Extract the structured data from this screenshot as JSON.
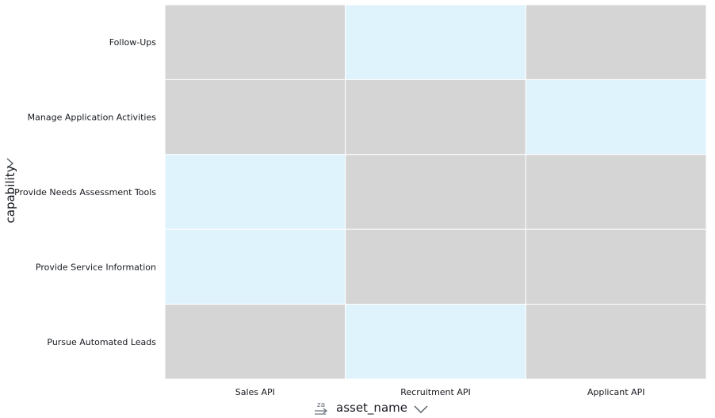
{
  "chart_data": {
    "type": "heatmap",
    "xlabel": "asset_name",
    "ylabel": "capability",
    "x_categories": [
      "Sales API",
      "Recruitment API",
      "Applicant API"
    ],
    "y_categories": [
      "Follow-Ups",
      "Manage Application Activities",
      "Provide Needs Assessment Tools",
      "Provide Service Information",
      "Pursue Automated Leads"
    ],
    "values": [
      [
        0,
        1,
        0
      ],
      [
        0,
        0,
        1
      ],
      [
        1,
        0,
        0
      ],
      [
        1,
        0,
        0
      ],
      [
        0,
        1,
        0
      ]
    ],
    "colors": {
      "present": "#dff3fd",
      "absent": "#d5d5d5",
      "grid": "#ffffff"
    }
  },
  "controls": {
    "sort_icon": "sort-za-icon",
    "x_menu_icon": "chevron-down-icon",
    "y_menu_icon": "chevron-right-icon"
  }
}
